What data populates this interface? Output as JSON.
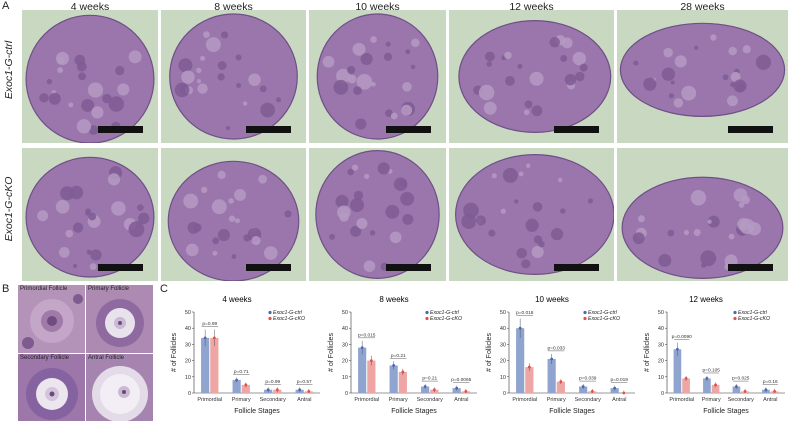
{
  "panel_letters": {
    "a": "A",
    "b": "B",
    "c": "C"
  },
  "weeks": [
    "4 weeks",
    "8 weeks",
    "10 weeks",
    "12 weeks",
    "28 weeks"
  ],
  "row_labels": [
    "Exoc1-G-ctrl",
    "Exoc1-G-cKO"
  ],
  "insets": [
    "Primordial Follicle",
    "Primary Follicle",
    "Secondary Follicle",
    "Antral Follicle"
  ],
  "colors": {
    "ctrl": "#4a67b0",
    "cko": "#e0504a",
    "ctrl_bar": "#8fa5cf",
    "cko_bar": "#eea6a4",
    "tissue": "#9a76ad",
    "bg": "#c9d8c0"
  },
  "chart_data": [
    {
      "type": "bar",
      "title": "4 weeks",
      "xlabel": "Follicle Stages",
      "ylabel": "# of Follicles",
      "categories": [
        "Primordial",
        "Primary",
        "Secondary",
        "Antral"
      ],
      "ylim": [
        0,
        50
      ],
      "yticks": [
        "0",
        "10",
        "20",
        "30",
        "40",
        "50"
      ],
      "series": [
        {
          "name": "Exoc1-G-ctrl",
          "values": [
            34,
            8,
            2,
            2
          ]
        },
        {
          "name": "Exoc1-G-cKO",
          "values": [
            34,
            5,
            2,
            1
          ]
        }
      ],
      "pvalues": [
        "p=0.99",
        "p=0.71",
        "p=0.99",
        "p=0.57"
      ]
    },
    {
      "type": "bar",
      "title": "8 weeks",
      "xlabel": "Follicle Stages",
      "ylabel": "# of Follicles",
      "categories": [
        "Primordial",
        "Primary",
        "Secondary",
        "Antral"
      ],
      "ylim": [
        0,
        50
      ],
      "yticks": [
        "0",
        "10",
        "20",
        "30",
        "40",
        "50"
      ],
      "series": [
        {
          "name": "Exoc1-G-ctrl",
          "values": [
            28,
            17,
            4,
            3
          ]
        },
        {
          "name": "Exoc1-G-cKO",
          "values": [
            20,
            13,
            2,
            1
          ]
        }
      ],
      "pvalues": [
        "p=0.015",
        "p=0.21",
        "p=0.21",
        "p=0.0065"
      ]
    },
    {
      "type": "bar",
      "title": "10 weeks",
      "xlabel": "Follicle Stages",
      "ylabel": "# of Follicles",
      "categories": [
        "Primordial",
        "Primary",
        "Secondary",
        "Antral"
      ],
      "ylim": [
        0,
        50
      ],
      "yticks": [
        "0",
        "10",
        "20",
        "30",
        "40",
        "50"
      ],
      "series": [
        {
          "name": "Exoc1-G-ctrl",
          "values": [
            40,
            21,
            4,
            3
          ]
        },
        {
          "name": "Exoc1-G-cKO",
          "values": [
            16,
            7,
            1,
            0
          ]
        }
      ],
      "pvalues": [
        "p=0.018",
        "p=0.033",
        "p=0.039",
        "p=0.019"
      ]
    },
    {
      "type": "bar",
      "title": "12 weeks",
      "xlabel": "Follicle Stages",
      "ylabel": "# of Follicles",
      "categories": [
        "Primordial",
        "Primary",
        "Secondary",
        "Antral"
      ],
      "ylim": [
        0,
        50
      ],
      "yticks": [
        "0",
        "10",
        "20",
        "30",
        "40",
        "50"
      ],
      "series": [
        {
          "name": "Exoc1-G-ctrl",
          "values": [
            27,
            9,
            4,
            2
          ]
        },
        {
          "name": "Exoc1-G-cKO",
          "values": [
            9,
            5,
            1,
            1
          ]
        }
      ],
      "pvalues": [
        "p=0.0090",
        "p=0.105",
        "p=0.025",
        "p=0.16"
      ]
    }
  ]
}
